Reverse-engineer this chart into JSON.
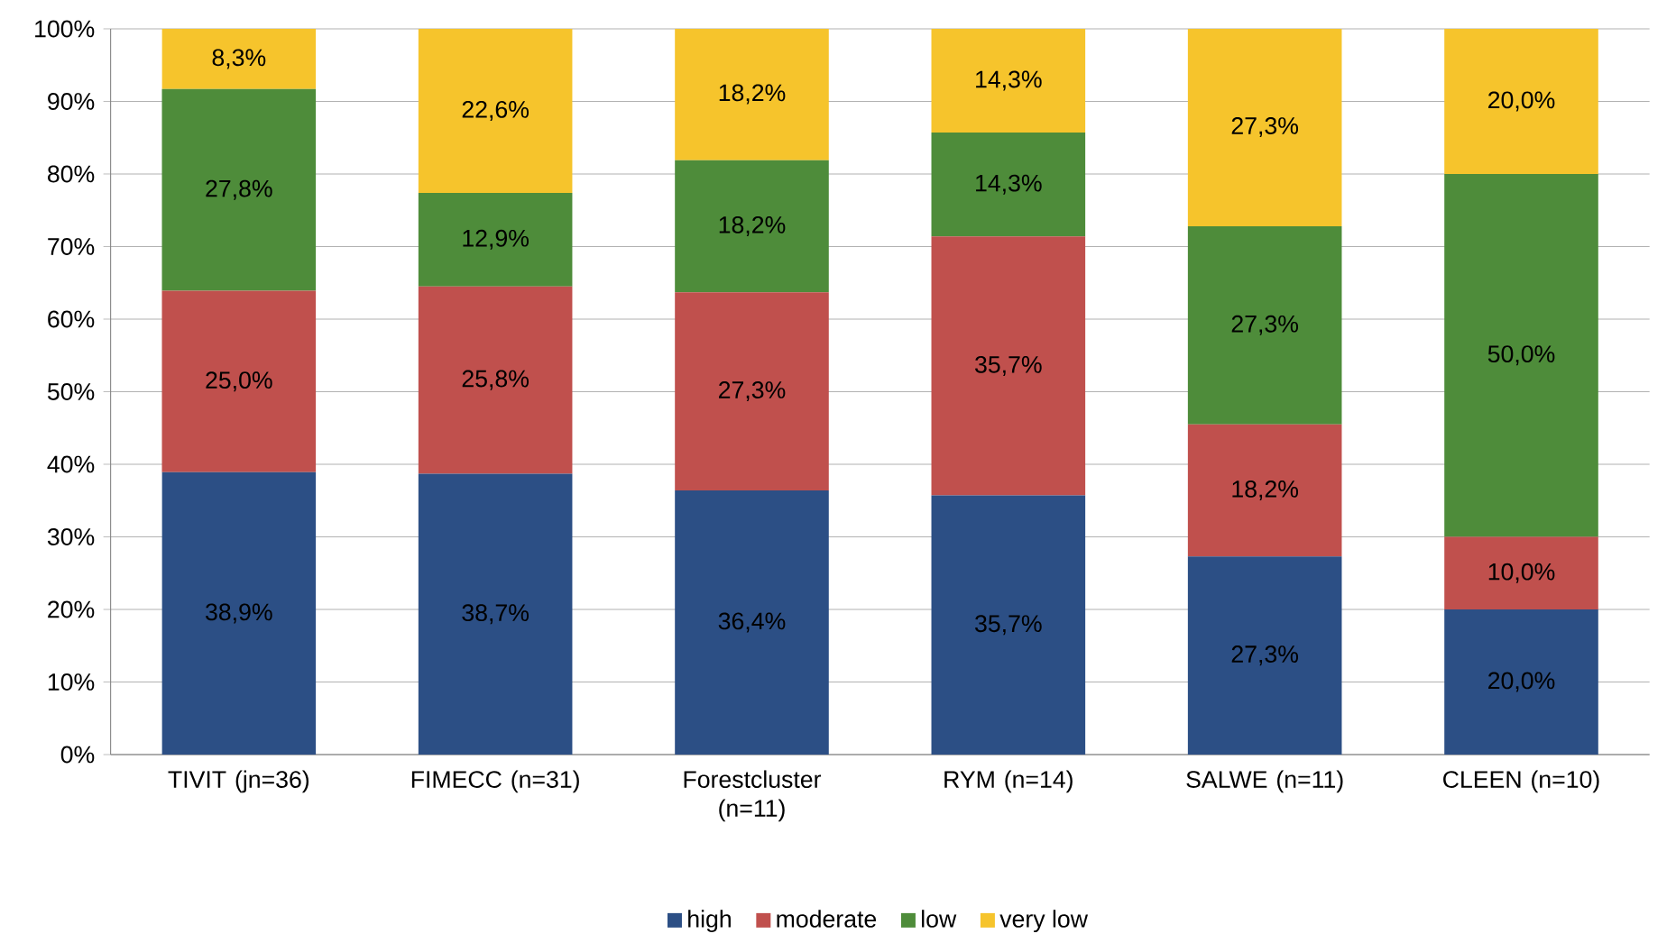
{
  "chart_data": {
    "type": "bar",
    "stacked": true,
    "categories": [
      "TIVIT (jn=36)",
      "FIMECC (n=31)",
      "Forestcluster (n=11)",
      "RYM (n=14)",
      "SALWE (n=11)",
      "CLEEN (n=10)"
    ],
    "series": [
      {
        "name": "high",
        "color": "#2c4f85",
        "values": [
          38.9,
          38.7,
          36.4,
          35.7,
          27.3,
          20.0
        ],
        "value_labels": [
          "38,9%",
          "38,7%",
          "36,4%",
          "35,7%",
          "27,3%",
          "20,0%"
        ]
      },
      {
        "name": "moderate",
        "color": "#c0504d",
        "values": [
          25.0,
          25.8,
          27.3,
          35.7,
          18.2,
          10.0
        ],
        "value_labels": [
          "25,0%",
          "25,8%",
          "27,3%",
          "35,7%",
          "18,2%",
          "10,0%"
        ]
      },
      {
        "name": "low",
        "color": "#4e8c3a",
        "values": [
          27.8,
          12.9,
          18.2,
          14.3,
          27.3,
          50.0
        ],
        "value_labels": [
          "27,8%",
          "12,9%",
          "18,2%",
          "14,3%",
          "27,3%",
          "50,0%"
        ]
      },
      {
        "name": "very low",
        "color": "#f6c42c",
        "values": [
          8.3,
          22.6,
          18.2,
          14.3,
          27.3,
          20.0
        ],
        "value_labels": [
          "8,3%",
          "22,6%",
          "18,2%",
          "14,3%",
          "27,3%",
          "20,0%"
        ]
      }
    ],
    "ylim": [
      0,
      100
    ],
    "yticks": [
      {
        "value": 0,
        "label": "0%"
      },
      {
        "value": 10,
        "label": "10%"
      },
      {
        "value": 20,
        "label": "20%"
      },
      {
        "value": 30,
        "label": "30%"
      },
      {
        "value": 40,
        "label": "40%"
      },
      {
        "value": 50,
        "label": "50%"
      },
      {
        "value": 60,
        "label": "60%"
      },
      {
        "value": 70,
        "label": "70%"
      },
      {
        "value": 80,
        "label": "80%"
      },
      {
        "value": 90,
        "label": "90%"
      },
      {
        "value": 100,
        "label": "100%"
      }
    ],
    "grid": "y",
    "legend": "bottom"
  }
}
